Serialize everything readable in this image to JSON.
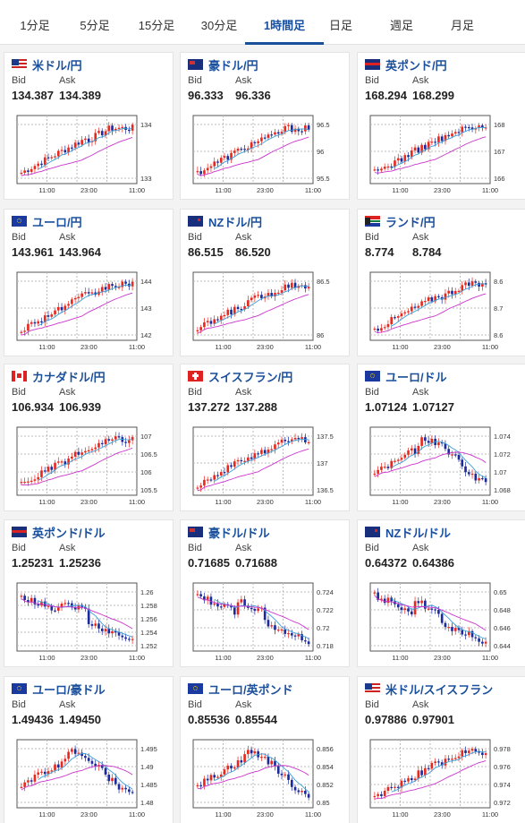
{
  "tabs": [
    {
      "label": "1分足",
      "active": false
    },
    {
      "label": "5分足",
      "active": false
    },
    {
      "label": "15分足",
      "active": false
    },
    {
      "label": "30分足",
      "active": false
    },
    {
      "label": "1時間足",
      "active": true
    },
    {
      "label": "日足",
      "active": false
    },
    {
      "label": "週足",
      "active": false
    },
    {
      "label": "月足",
      "active": false
    }
  ],
  "labels": {
    "bid": "Bid",
    "ask": "Ask"
  },
  "pairs": [
    {
      "name": "米ドル/円",
      "bid": "134.387",
      "ask": "134.389",
      "flags": [
        "us",
        "jp"
      ],
      "ticks": [
        "134",
        "133"
      ],
      "xticks": [
        "11:00",
        "23:00",
        "11:00"
      ],
      "trend": "up",
      "lo": 132.8,
      "hi": 134.5
    },
    {
      "name": "豪ドル/円",
      "bid": "96.333",
      "ask": "96.336",
      "flags": [
        "au",
        "jp"
      ],
      "ticks": [
        "96.5",
        "96",
        "95.5"
      ],
      "xticks": [
        "11:00",
        "23:00",
        "11:00"
      ],
      "trend": "up",
      "lo": 95.3,
      "hi": 96.8
    },
    {
      "name": "英ポンド/円",
      "bid": "168.294",
      "ask": "168.299",
      "flags": [
        "uk",
        "jp"
      ],
      "ticks": [
        "168",
        "167",
        "166"
      ],
      "xticks": [
        "11:00",
        "23:00",
        "11:00"
      ],
      "trend": "up",
      "lo": 165.8,
      "hi": 168.8
    },
    {
      "name": "ユーロ/円",
      "bid": "143.961",
      "ask": "143.964",
      "flags": [
        "eu",
        "jp"
      ],
      "ticks": [
        "144",
        "143",
        "142"
      ],
      "xticks": [
        "11:00",
        "23:00",
        "11:00"
      ],
      "trend": "up",
      "lo": 141.6,
      "hi": 144.3
    },
    {
      "name": "NZドル/円",
      "bid": "86.515",
      "ask": "86.520",
      "flags": [
        "nz",
        "jp"
      ],
      "ticks": [
        "86.5",
        "86"
      ],
      "xticks": [
        "11:00",
        "23:00",
        "11:00"
      ],
      "trend": "up",
      "lo": 85.6,
      "hi": 86.9
    },
    {
      "name": "ランド/円",
      "bid": "8.774",
      "ask": "8.784",
      "flags": [
        "za",
        "jp"
      ],
      "ticks": [
        "8.6",
        "8.7",
        "8.6"
      ],
      "xticks": [
        "11:00",
        "23:00",
        "11:00"
      ],
      "trend": "up",
      "lo": 8.58,
      "hi": 8.85
    },
    {
      "name": "カナダドル/円",
      "bid": "106.934",
      "ask": "106.939",
      "flags": [
        "ca",
        "jp"
      ],
      "ticks": [
        "107",
        "106.5",
        "106",
        "105.5"
      ],
      "xticks": [
        "11:00",
        "23:00",
        "11:00"
      ],
      "trend": "up",
      "lo": 105.3,
      "hi": 107.2
    },
    {
      "name": "スイスフラン/円",
      "bid": "137.272",
      "ask": "137.288",
      "flags": [
        "ch",
        "jp"
      ],
      "ticks": [
        "137.5",
        "137",
        "136.5"
      ],
      "xticks": [
        "11:00",
        "23:00",
        "11:00"
      ],
      "trend": "up",
      "lo": 136.1,
      "hi": 137.8
    },
    {
      "name": "ユーロ/ドル",
      "bid": "1.07124",
      "ask": "1.07127",
      "flags": [
        "eu",
        "us"
      ],
      "ticks": [
        "1.074",
        "1.072",
        "1.07",
        "1.068"
      ],
      "xticks": [
        "11:00",
        "23:00",
        "11:00"
      ],
      "trend": "mid",
      "lo": 1.0675,
      "hi": 1.075
    },
    {
      "name": "英ポンド/ドル",
      "bid": "1.25231",
      "ask": "1.25236",
      "flags": [
        "uk",
        "us"
      ],
      "ticks": [
        "1.26",
        "1.258",
        "1.256",
        "1.254",
        "1.252"
      ],
      "xticks": [
        "11:00",
        "23:00",
        "11:00"
      ],
      "trend": "down",
      "lo": 1.2515,
      "hi": 1.2605
    },
    {
      "name": "豪ドル/ドル",
      "bid": "0.71685",
      "ask": "0.71688",
      "flags": [
        "au",
        "us"
      ],
      "ticks": [
        "0.724",
        "0.722",
        "0.72",
        "0.718"
      ],
      "xticks": [
        "11:00",
        "23:00",
        "11:00"
      ],
      "trend": "down",
      "lo": 0.7165,
      "hi": 0.7245
    },
    {
      "name": "NZドル/ドル",
      "bid": "0.64372",
      "ask": "0.64386",
      "flags": [
        "nz",
        "us"
      ],
      "ticks": [
        "0.65",
        "0.648",
        "0.646",
        "0.644"
      ],
      "xticks": [
        "11:00",
        "23:00",
        "11:00"
      ],
      "trend": "down",
      "lo": 0.6432,
      "hi": 0.6505
    },
    {
      "name": "ユーロ/豪ドル",
      "bid": "1.49436",
      "ask": "1.49450",
      "flags": [
        "eu",
        "au"
      ],
      "ticks": [
        "1.495",
        "1.49",
        "1.485",
        "1.48"
      ],
      "xticks": [
        "11:00",
        "23:00",
        "11:00"
      ],
      "trend": "mid",
      "lo": 1.4785,
      "hi": 1.496
    },
    {
      "name": "ユーロ/英ポンド",
      "bid": "0.85536",
      "ask": "0.85544",
      "flags": [
        "eu",
        "uk"
      ],
      "ticks": [
        "0.856",
        "0.854",
        "0.852",
        "0.85"
      ],
      "xticks": [
        "11:00",
        "23:00",
        "11:00"
      ],
      "trend": "mid",
      "lo": 0.8495,
      "hi": 0.8565
    },
    {
      "name": "米ドル/スイスフラン",
      "bid": "0.97886",
      "ask": "0.97901",
      "flags": [
        "us",
        "ch"
      ],
      "ticks": [
        "0.978",
        "0.976",
        "0.974",
        "0.972"
      ],
      "xticks": [
        "11:00",
        "23:00",
        "11:00"
      ],
      "trend": "up",
      "lo": 0.9712,
      "hi": 0.9792
    }
  ],
  "colors": {
    "accent": "#1a4f9c",
    "up": "#e8281e",
    "down": "#1b2a9c",
    "ma1": "#cc33cc",
    "ma2": "#3aa0d8"
  }
}
